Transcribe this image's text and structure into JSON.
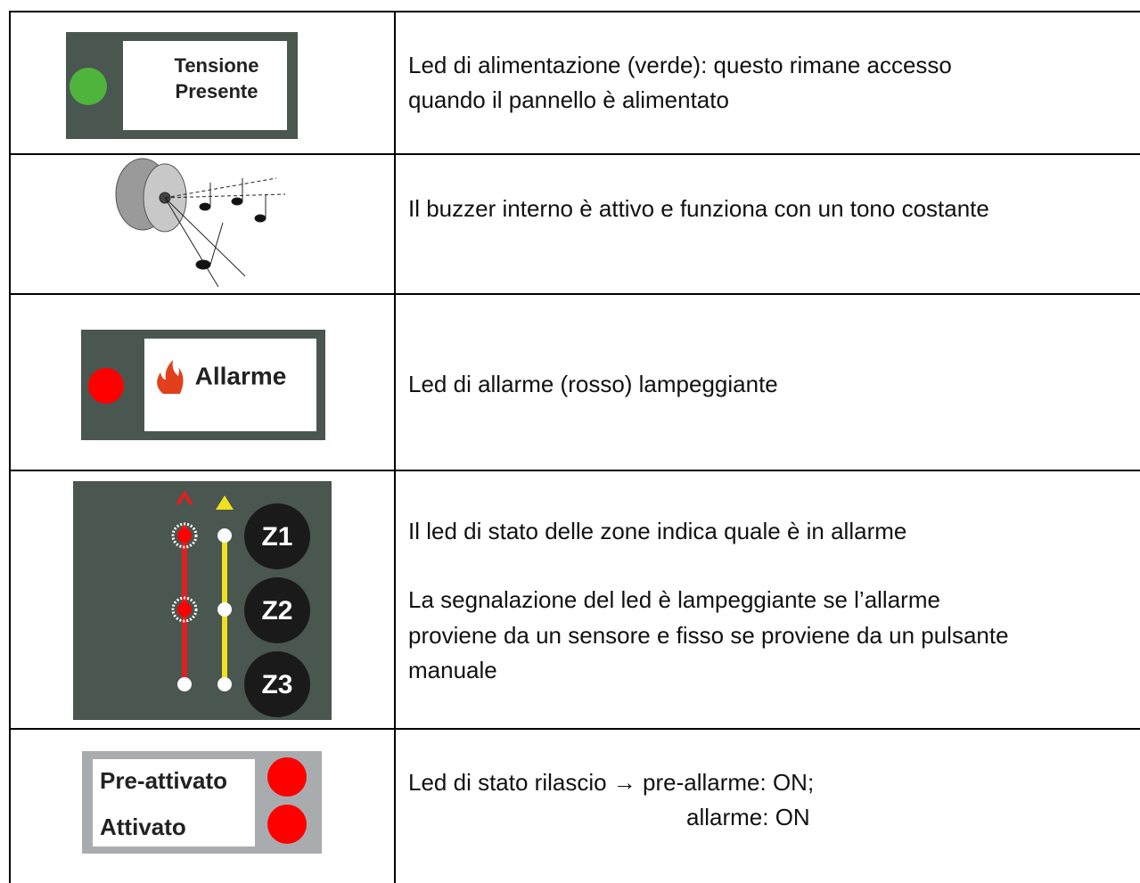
{
  "table": {
    "rows": [
      {
        "image": {
          "labels": [
            "Tensione",
            "Presente"
          ]
        },
        "description": [
          "Led di alimentazione (verde): questo rimane accesso",
          "quando il pannello è alimentato"
        ]
      },
      {
        "description": [
          "Il buzzer interno è attivo e funziona con un tono costante"
        ]
      },
      {
        "image": {
          "labels": [
            "Allarme"
          ]
        },
        "description": [
          "Led di allarme (rosso) lampeggiante"
        ]
      },
      {
        "image": {
          "labels": [
            "Z1",
            "Z2",
            "Z3"
          ]
        },
        "description": [
          "Il led di stato delle zone indica quale è in allarme",
          "La segnalazione del led è lampeggiante se l’allarme",
          "proviene da un sensore e fisso se proviene da un pulsante",
          "manuale"
        ]
      },
      {
        "image": {
          "labels": [
            "Pre-attivato",
            "Attivato"
          ]
        },
        "description": [
          "Led di stato rilascio → pre-allarme: ON;",
          "allarme: ON"
        ]
      }
    ]
  }
}
